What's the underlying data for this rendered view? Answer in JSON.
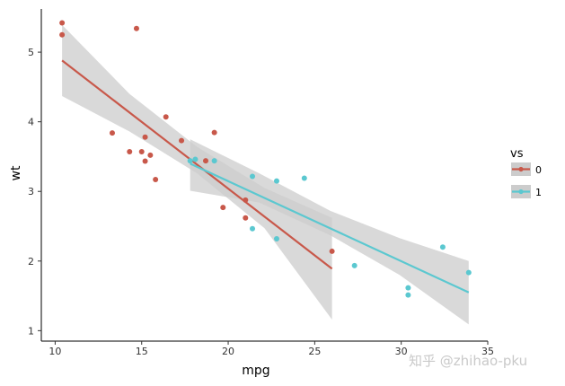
{
  "chart_data": {
    "type": "scatter",
    "xlabel": "mpg",
    "ylabel": "wt",
    "xlim": [
      9.2,
      35.0
    ],
    "ylim": [
      0.85,
      5.62
    ],
    "x_ticks": [
      10,
      15,
      20,
      25,
      30,
      35
    ],
    "y_ticks": [
      1,
      2,
      3,
      4,
      5
    ],
    "grid": false,
    "legend": {
      "title": "vs",
      "placement": "right",
      "entries": [
        "0",
        "1"
      ]
    },
    "colors": {
      "0": "#c8584a",
      "1": "#5bc8d0",
      "ribbon": "#cccccc"
    },
    "series": [
      {
        "name": "0",
        "points": [
          [
            10.4,
            5.42
          ],
          [
            10.4,
            5.25
          ],
          [
            14.7,
            5.34
          ],
          [
            13.3,
            3.84
          ],
          [
            14.3,
            3.57
          ],
          [
            15.0,
            3.57
          ],
          [
            15.2,
            3.78
          ],
          [
            15.2,
            3.435
          ],
          [
            15.5,
            3.52
          ],
          [
            15.8,
            3.17
          ],
          [
            16.4,
            4.07
          ],
          [
            17.3,
            3.73
          ],
          [
            18.7,
            3.44
          ],
          [
            19.2,
            3.845
          ],
          [
            19.7,
            2.77
          ],
          [
            21.0,
            2.875
          ],
          [
            21.0,
            2.62
          ],
          [
            26.0,
            2.14
          ]
        ],
        "fit": {
          "x": [
            10.4,
            26.0
          ],
          "y": [
            4.88,
            1.89
          ]
        },
        "ci_band": {
          "x": [
            10.4,
            14.3,
            18.2,
            22.1,
            26.0
          ],
          "lower": [
            4.37,
            3.86,
            3.26,
            2.47,
            1.16
          ],
          "upper": [
            5.39,
            4.4,
            3.64,
            3.05,
            2.62
          ]
        }
      },
      {
        "name": "1",
        "points": [
          [
            18.1,
            3.46
          ],
          [
            17.8,
            3.44
          ],
          [
            19.2,
            3.44
          ],
          [
            21.4,
            3.215
          ],
          [
            22.8,
            3.15
          ],
          [
            24.4,
            3.19
          ],
          [
            21.4,
            2.465
          ],
          [
            22.8,
            2.32
          ],
          [
            27.3,
            1.935
          ],
          [
            30.4,
            1.615
          ],
          [
            30.4,
            1.513
          ],
          [
            32.4,
            2.2
          ],
          [
            33.9,
            1.835
          ]
        ],
        "fit": {
          "x": [
            17.8,
            33.9
          ],
          "y": [
            3.4,
            1.55
          ]
        },
        "ci_band": {
          "x": [
            17.8,
            21.8,
            25.9,
            29.9,
            33.9
          ],
          "lower": [
            3.01,
            2.84,
            2.37,
            1.8,
            1.09
          ],
          "upper": [
            3.75,
            3.26,
            2.72,
            2.33,
            2.0
          ]
        }
      }
    ]
  },
  "watermark": "知乎 @zhihao-pku"
}
